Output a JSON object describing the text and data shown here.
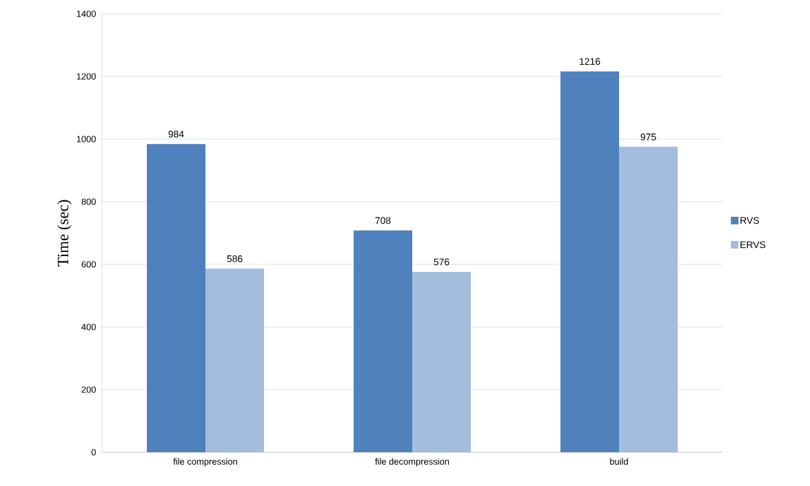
{
  "chart_data": {
    "type": "bar",
    "ylabel": "Time (sec)",
    "categories": [
      "file compression",
      "file decompression",
      "build"
    ],
    "series": [
      {
        "name": "RVS",
        "color": "#4f81bd",
        "values": [
          984,
          708,
          1216
        ]
      },
      {
        "name": "ERVS",
        "color": "#a3bddf",
        "values": [
          586,
          576,
          975
        ]
      }
    ],
    "ylim": [
      0,
      1400
    ],
    "yticks": [
      0,
      200,
      400,
      600,
      800,
      1000,
      1200,
      1400
    ],
    "grid": "y",
    "legend": "right",
    "data_labels": true
  }
}
